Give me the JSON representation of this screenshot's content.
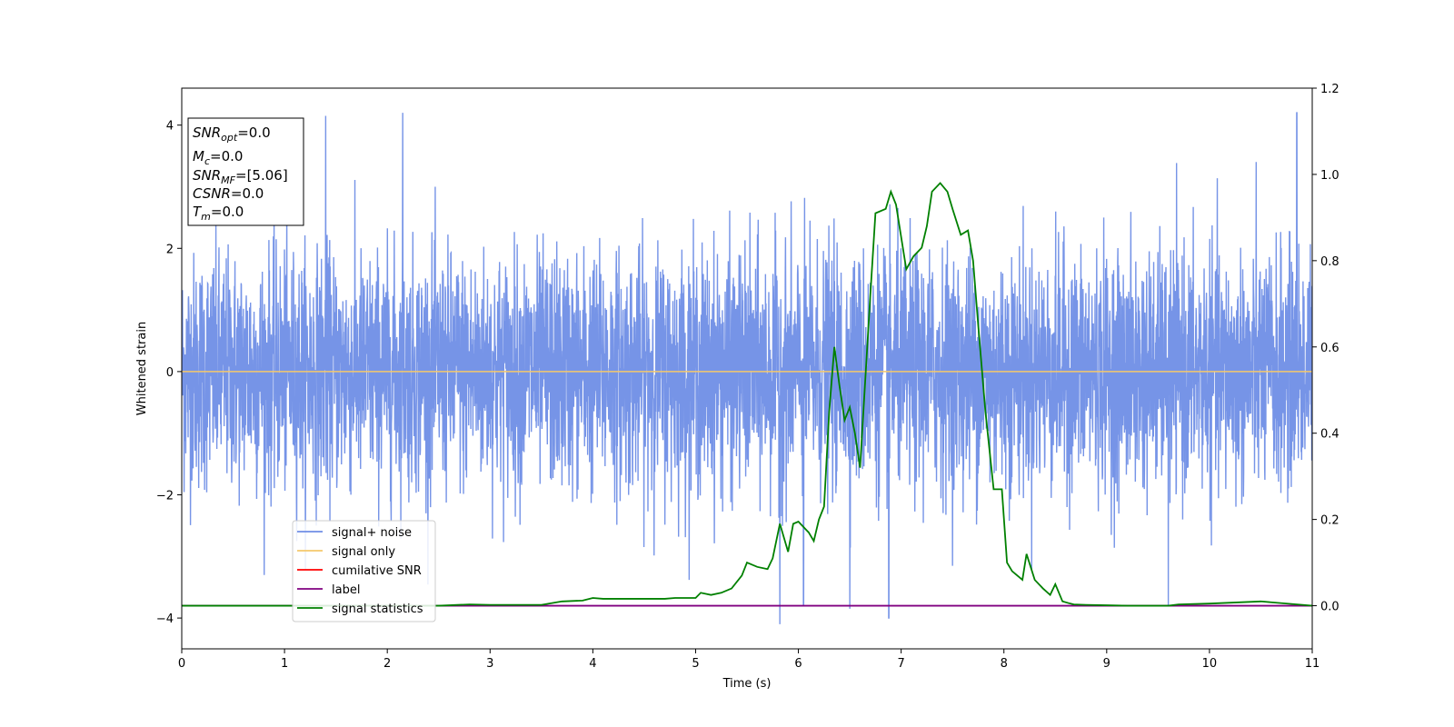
{
  "chart_data": {
    "type": "line",
    "xlabel": "Time (s)",
    "ylabel": "Whitened strain",
    "xlim": [
      0,
      11
    ],
    "ylim_left": [
      -4.5,
      4.6
    ],
    "ylim_right": [
      -0.1,
      1.2
    ],
    "x_ticks": [
      "0",
      "1",
      "2",
      "3",
      "4",
      "5",
      "6",
      "7",
      "8",
      "9",
      "10",
      "11"
    ],
    "y_ticks_left": [
      "−4",
      "−2",
      "0",
      "2",
      "4"
    ],
    "y_ticks_left_values": [
      -4,
      -2,
      0,
      2,
      4
    ],
    "y_ticks_right": [
      "0.0",
      "0.2",
      "0.4",
      "0.6",
      "0.8",
      "1.0",
      "1.2"
    ],
    "y_ticks_right_values": [
      0.0,
      0.2,
      0.4,
      0.6,
      0.8,
      1.0,
      1.2
    ],
    "grid": false,
    "legend_position": "lower-left",
    "legend": [
      {
        "label": "signal+ noise",
        "color": "#6f8ee6"
      },
      {
        "label": "signal only",
        "color": "#f5c86b"
      },
      {
        "label": "cumilative SNR",
        "color": "#ff0000"
      },
      {
        "label": "label",
        "color": "#800080"
      },
      {
        "label": "signal statistics",
        "color": "#008000"
      }
    ],
    "series": [
      {
        "name": "signal+ noise",
        "axis": "left",
        "color": "#6f8ee6",
        "description_range": {
          "typical": [
            -2.2,
            2.3
          ],
          "max": 4.2,
          "min": -4.1
        },
        "notable_spikes": [
          {
            "x": 1.4,
            "y": 4.15
          },
          {
            "x": 2.15,
            "y": 4.2
          },
          {
            "x": 10.85,
            "y": 4.2
          },
          {
            "x": 5.82,
            "y": -4.1
          },
          {
            "x": 6.88,
            "y": -4.0
          },
          {
            "x": 6.5,
            "y": -3.85
          },
          {
            "x": 6.05,
            "y": -3.8
          },
          {
            "x": 9.6,
            "y": -3.8
          }
        ]
      },
      {
        "name": "signal only",
        "axis": "left",
        "color": "#f5c86b",
        "x": [
          0,
          11
        ],
        "y": [
          0,
          0
        ]
      },
      {
        "name": "label",
        "axis": "right",
        "color": "#800080",
        "x": [
          0,
          11
        ],
        "y": [
          0,
          0
        ]
      },
      {
        "name": "signal statistics",
        "axis": "right",
        "color": "#008000",
        "x": [
          0,
          0.5,
          1.0,
          1.5,
          2.0,
          2.5,
          2.8,
          3.0,
          3.5,
          3.7,
          3.9,
          4.0,
          4.1,
          4.3,
          4.5,
          4.7,
          4.8,
          4.9,
          5.0,
          5.05,
          5.15,
          5.25,
          5.35,
          5.45,
          5.5,
          5.6,
          5.7,
          5.75,
          5.82,
          5.9,
          5.95,
          6.0,
          6.1,
          6.15,
          6.2,
          6.25,
          6.3,
          6.35,
          6.4,
          6.45,
          6.5,
          6.55,
          6.6,
          6.7,
          6.75,
          6.85,
          6.9,
          6.95,
          7.05,
          7.12,
          7.2,
          7.25,
          7.3,
          7.38,
          7.45,
          7.5,
          7.58,
          7.65,
          7.7,
          7.75,
          7.82,
          7.9,
          7.98,
          8.03,
          8.08,
          8.13,
          8.18,
          8.22,
          8.3,
          8.38,
          8.45,
          8.5,
          8.57,
          8.63,
          8.68,
          8.8,
          9.0,
          9.2,
          9.6,
          9.7,
          10.0,
          10.5,
          11.0
        ],
        "y": [
          0.0,
          0.0,
          0.0,
          0.0,
          0.0,
          0.0,
          0.003,
          0.002,
          0.002,
          0.01,
          0.012,
          0.018,
          0.016,
          0.016,
          0.016,
          0.016,
          0.018,
          0.018,
          0.018,
          0.03,
          0.025,
          0.03,
          0.04,
          0.07,
          0.1,
          0.09,
          0.085,
          0.11,
          0.19,
          0.125,
          0.19,
          0.195,
          0.17,
          0.15,
          0.2,
          0.23,
          0.45,
          0.6,
          0.51,
          0.43,
          0.46,
          0.4,
          0.32,
          0.72,
          0.91,
          0.92,
          0.96,
          0.93,
          0.78,
          0.81,
          0.83,
          0.88,
          0.96,
          0.98,
          0.96,
          0.92,
          0.86,
          0.87,
          0.8,
          0.65,
          0.45,
          0.27,
          0.27,
          0.1,
          0.08,
          0.07,
          0.06,
          0.12,
          0.06,
          0.04,
          0.025,
          0.05,
          0.01,
          0.006,
          0.003,
          0.002,
          0.001,
          0.0,
          0.0,
          0.003,
          0.005,
          0.01,
          0.0
        ]
      }
    ]
  },
  "info_box": {
    "lines": [
      {
        "sym": "SNR",
        "sub": "opt",
        "val": "=0.0"
      },
      {
        "sym": "M",
        "sub": "c",
        "val": "=0.0"
      },
      {
        "sym": "SNR",
        "sub": "MF",
        "val": "=[5.06]"
      },
      {
        "sym": "CSNR",
        "sub": "",
        "val": "=0.0"
      },
      {
        "sym": "T",
        "sub": "m",
        "val": "=0.0"
      }
    ]
  }
}
